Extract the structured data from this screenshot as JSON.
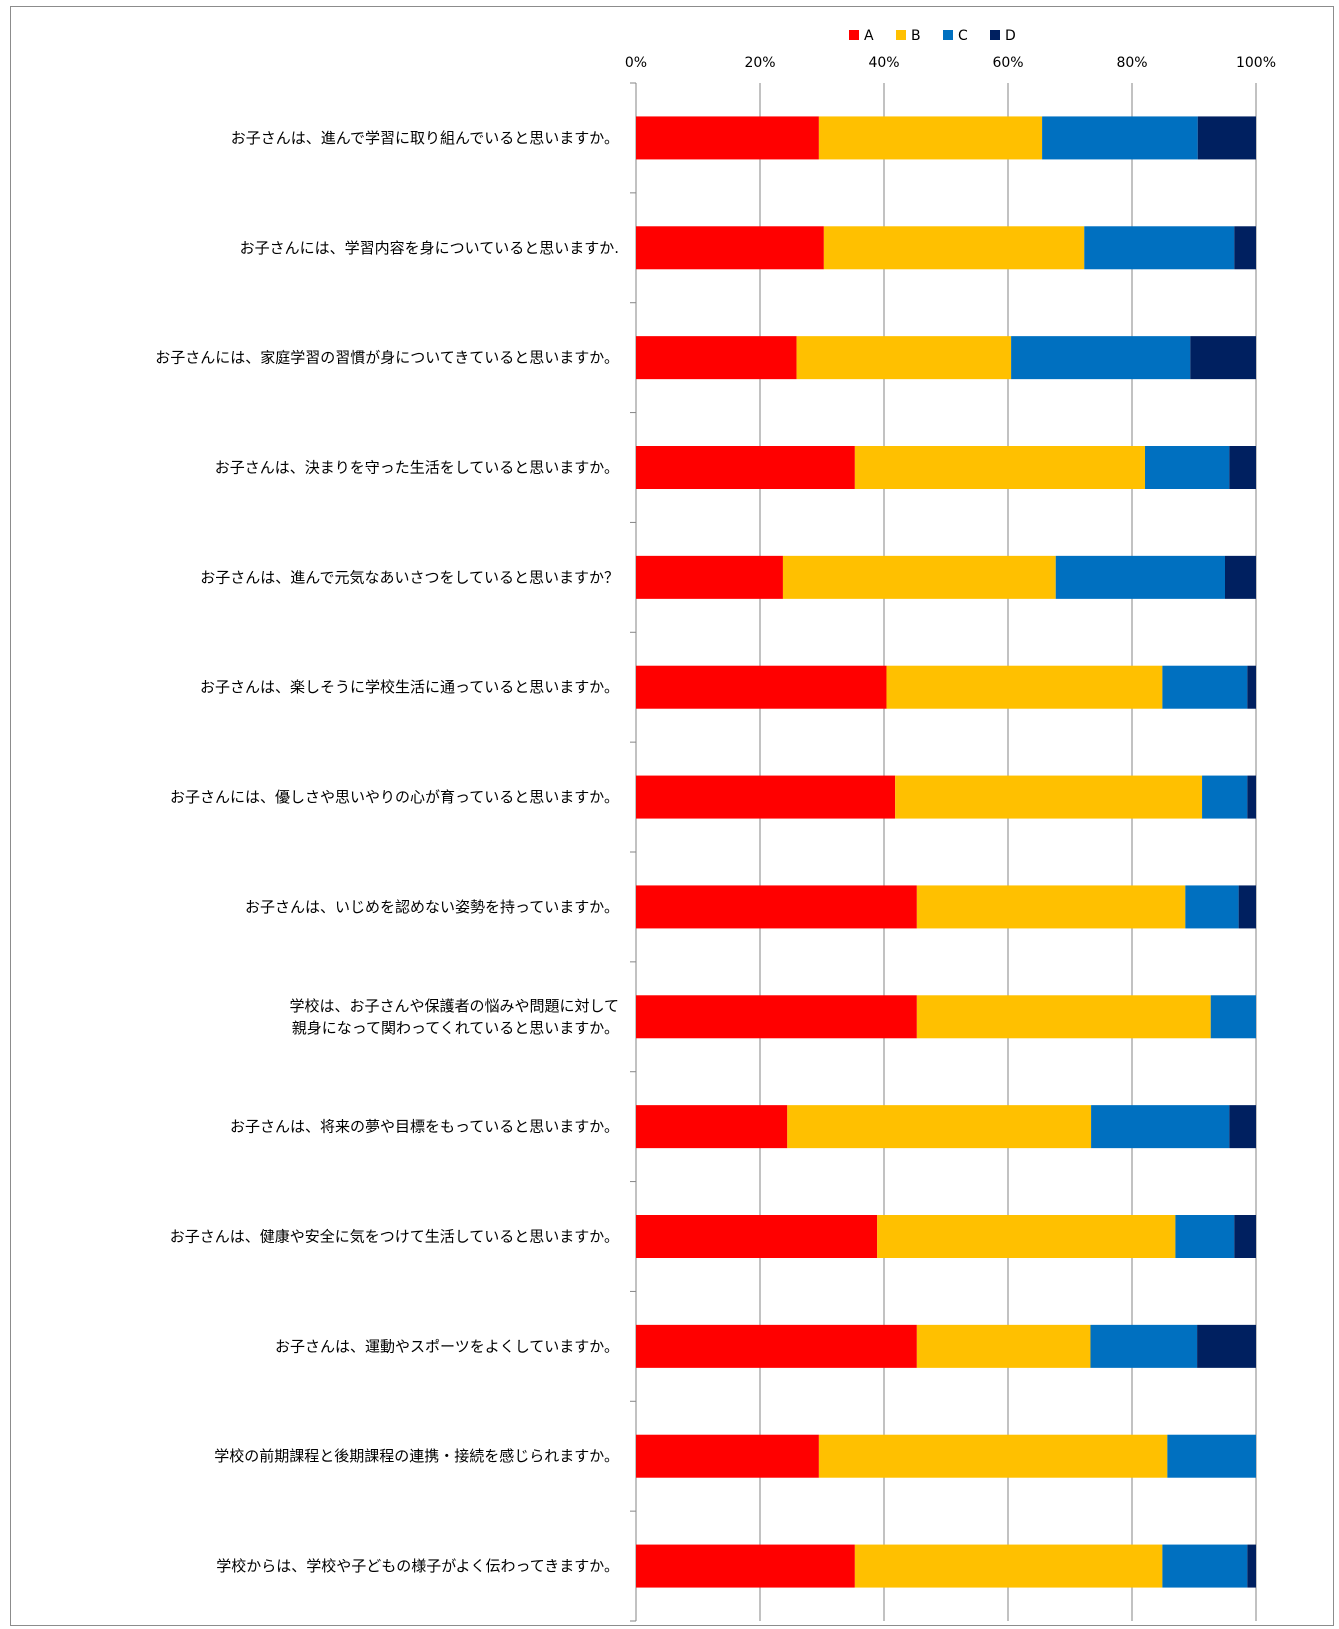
{
  "chart_data": {
    "type": "bar",
    "orientation": "horizontal",
    "stacked": true,
    "percent": true,
    "xlim": [
      0,
      100
    ],
    "x_ticks": [
      "0%",
      "20%",
      "40%",
      "60%",
      "80%",
      "100%"
    ],
    "x_tick_values": [
      0,
      20,
      40,
      60,
      80,
      100
    ],
    "grid": true,
    "legend_position": "top",
    "categories": [
      "お子さんは、進んで学習に取り組んでいると思いますか。",
      "お子さんには、学習内容を身についていると思いますか.",
      "お子さんには、家庭学習の習慣が身についてきていると思いますか。",
      "お子さんは、決まりを守った生活をしていると思いますか。",
      "お子さんは、進んで元気なあいさつをしていると思いますか？",
      "お子さんは、楽しそうに学校生活に通っていると思いますか。",
      "お子さんには、優しさや思いやりの心が育っていると思いますか。",
      "お子さんは、いじめを認めない姿勢を持っていますか。",
      "学校は、お子さんや保護者の悩みや問題に対して\n親身になって関わってくれていると思いますか。",
      "お子さんは、将来の夢や目標をもっていると思いますか。",
      "お子さんは、健康や安全に気をつけて生活していると思いますか。",
      "お子さんは、運動やスポーツをよくしていますか。",
      "学校の前期課程と後期課程の連携・接続を感じられますか。",
      "学校からは、学校や子どもの様子がよく伝わってきますか。"
    ],
    "series": [
      {
        "name": "A",
        "color": "#FF0000",
        "values": [
          29.5,
          30.3,
          25.9,
          35.3,
          23.7,
          40.4,
          41.8,
          45.3,
          45.3,
          24.4,
          38.9,
          45.3,
          29.5,
          35.3
        ]
      },
      {
        "name": "B",
        "color": "#FFC000",
        "values": [
          36.0,
          42.0,
          34.6,
          46.8,
          44.0,
          44.5,
          49.5,
          43.3,
          47.4,
          49.0,
          48.1,
          28.0,
          56.2,
          49.6
        ]
      },
      {
        "name": "C",
        "color": "#0070C0",
        "values": [
          25.1,
          24.2,
          28.9,
          13.6,
          27.3,
          13.7,
          7.3,
          8.6,
          7.3,
          22.3,
          9.5,
          17.2,
          14.3,
          13.7
        ]
      },
      {
        "name": "D",
        "color": "#002060",
        "values": [
          9.4,
          3.5,
          10.6,
          4.3,
          5.0,
          1.4,
          1.4,
          2.8,
          0.0,
          4.3,
          3.5,
          9.5,
          0.0,
          1.4
        ]
      }
    ]
  }
}
